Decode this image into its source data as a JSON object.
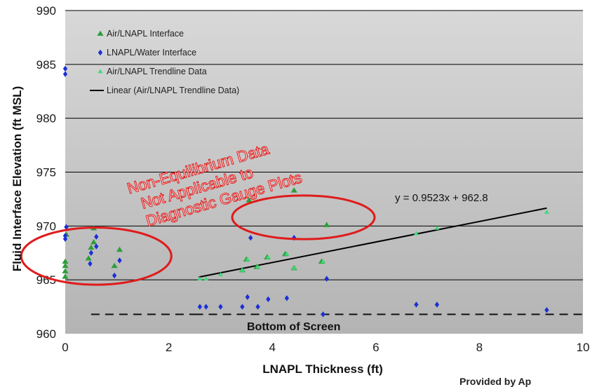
{
  "chart_data": {
    "type": "scatter",
    "xlabel": "LNAPL Thickness (ft)",
    "ylabel": "Fluid Interface Elevation (ft MSL)",
    "xlim": [
      0,
      10
    ],
    "ylim": [
      960,
      990
    ],
    "x_ticks": [
      "0",
      "2",
      "4",
      "6",
      "8",
      "10"
    ],
    "y_ticks": [
      "960",
      "965",
      "970",
      "975",
      "980",
      "985",
      "990"
    ],
    "grid": "horizontal",
    "legend_placement": "top-left",
    "series": [
      {
        "name": "Air/LNAPL Interface",
        "marker": "triangle",
        "color": "#2e9e3a",
        "points": [
          [
            0,
            966.7
          ],
          [
            0,
            966.3
          ],
          [
            0,
            965.8
          ],
          [
            0,
            965.3
          ],
          [
            0.02,
            969.2
          ],
          [
            0.55,
            969.8
          ],
          [
            0.55,
            968.5
          ],
          [
            0.5,
            968
          ],
          [
            0.45,
            967
          ],
          [
            0.95,
            966.3
          ],
          [
            1.05,
            967.8
          ],
          [
            3.55,
            972.4
          ],
          [
            4.42,
            973.3
          ],
          [
            5.05,
            970.1
          ],
          [
            3.5,
            966.9
          ],
          [
            3.7,
            966.2
          ],
          [
            3.9,
            967.1
          ],
          [
            4.25,
            967.4
          ],
          [
            4.42,
            966.1
          ],
          [
            4.95,
            966.7
          ],
          [
            3.42,
            965.9
          ]
        ]
      },
      {
        "name": "LNAPL/Water Interface",
        "marker": "diamond",
        "color": "#1a2fd6",
        "points": [
          [
            0,
            984.6
          ],
          [
            0,
            984.1
          ],
          [
            0.02,
            969.9
          ],
          [
            0,
            969.1
          ],
          [
            0,
            968.8
          ],
          [
            0.6,
            969
          ],
          [
            0.6,
            968.1
          ],
          [
            0.5,
            967.5
          ],
          [
            0.48,
            966.5
          ],
          [
            0.95,
            965.4
          ],
          [
            1.05,
            966.8
          ],
          [
            3.58,
            968.9
          ],
          [
            4.42,
            968.9
          ],
          [
            5.05,
            965.1
          ],
          [
            2.6,
            962.5
          ],
          [
            2.72,
            962.5
          ],
          [
            3.0,
            962.5
          ],
          [
            3.42,
            962.5
          ],
          [
            3.52,
            963.4
          ],
          [
            3.72,
            962.5
          ],
          [
            3.92,
            963.2
          ],
          [
            4.28,
            963.3
          ],
          [
            4.98,
            961.8
          ],
          [
            6.78,
            962.7
          ],
          [
            7.18,
            962.7
          ],
          [
            9.3,
            962.2
          ]
        ]
      },
      {
        "name": "Air/LNAPL Trendline Data",
        "marker": "small-triangle",
        "color": "#3fd87a",
        "points": [
          [
            2.6,
            965.1
          ],
          [
            2.72,
            965.1
          ],
          [
            3.0,
            965.5
          ],
          [
            3.42,
            965.9
          ],
          [
            3.52,
            966.9
          ],
          [
            3.72,
            966.2
          ],
          [
            3.92,
            967.1
          ],
          [
            4.28,
            967.4
          ],
          [
            4.42,
            966.1
          ],
          [
            4.98,
            966.7
          ],
          [
            6.78,
            969.3
          ],
          [
            7.18,
            969.8
          ],
          [
            9.3,
            971.3
          ]
        ]
      }
    ],
    "trendline": {
      "name": "Linear (Air/LNAPL Trendline Data)",
      "slope": 0.9523,
      "intercept": 962.8,
      "x_range": [
        2.58,
        9.3
      ],
      "color": "#000000"
    },
    "reference_line": {
      "label": "Bottom of Screen",
      "y": 961.8,
      "style": "dashed"
    },
    "annotations": {
      "equation": "y = 0.9523x + 962.8",
      "non_equilibrium": [
        "Non-Equilibrium Data",
        "Not Applicable to",
        "Diagnostic Gauge Plots"
      ]
    },
    "circled_regions": [
      {
        "center": [
          0.6,
          967.2
        ],
        "radius": [
          2.9,
          5.3
        ]
      },
      {
        "center": [
          4.6,
          970.8
        ],
        "radius": [
          2.75,
          4.05
        ]
      }
    ]
  },
  "footer_fragment": "Provided by Ap"
}
